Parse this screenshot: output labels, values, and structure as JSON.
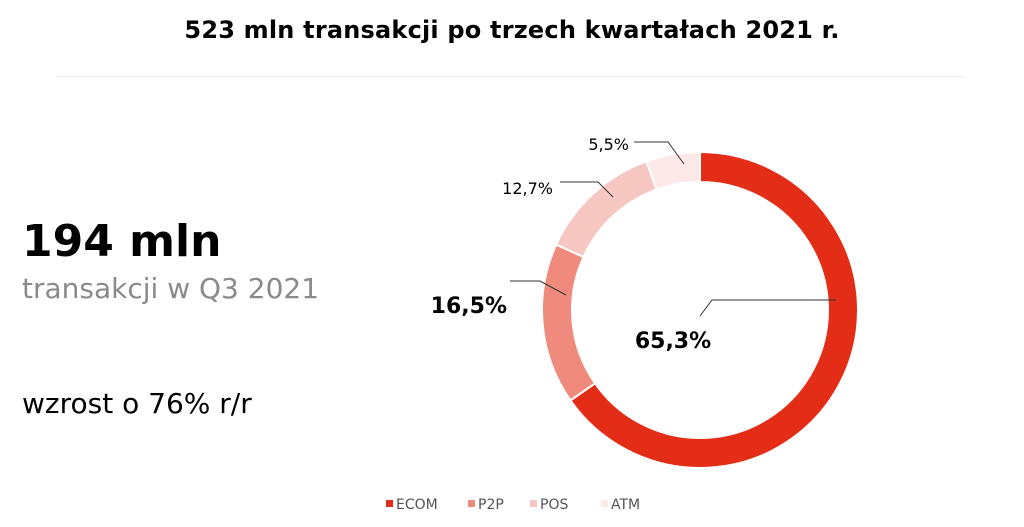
{
  "header": {
    "title": "523 mln transakcji po trzech kwartałach 2021 r."
  },
  "summary": {
    "big_number": "194 mln",
    "subtitle": "transakcji w Q3 2021",
    "growth": "wzrost o 76% r/r"
  },
  "chart_data": {
    "type": "pie",
    "donut": true,
    "categories": [
      "ECOM",
      "P2P",
      "POS",
      "ATM"
    ],
    "values": [
      65.3,
      16.5,
      12.7,
      5.5
    ],
    "labels": [
      "65,3%",
      "16,5%",
      "12,7%",
      "5,5%"
    ],
    "colors": [
      "#e32d16",
      "#f08a7c",
      "#f7c8c2",
      "#fce9e7"
    ],
    "legend_position": "bottom"
  }
}
